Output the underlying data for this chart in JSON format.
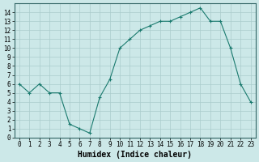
{
  "x": [
    0,
    1,
    2,
    3,
    4,
    5,
    6,
    7,
    8,
    9,
    10,
    11,
    12,
    13,
    14,
    15,
    16,
    17,
    18,
    19,
    20,
    21,
    22,
    23
  ],
  "y": [
    6,
    5,
    6,
    5,
    5,
    1.5,
    1,
    0.5,
    4.5,
    6.5,
    10,
    11,
    12,
    12.5,
    13,
    13,
    13.5,
    14,
    14.5,
    13,
    13,
    10,
    6,
    4
  ],
  "xlabel": "Humidex (Indice chaleur)",
  "line_color": "#1a7a6e",
  "marker": "+",
  "bg_color": "#cce8e8",
  "grid_color": "#aacccc",
  "xlim": [
    -0.5,
    23.5
  ],
  "ylim": [
    0,
    15
  ],
  "yticks": [
    0,
    1,
    2,
    3,
    4,
    5,
    6,
    7,
    8,
    9,
    10,
    11,
    12,
    13,
    14
  ],
  "xticks": [
    0,
    1,
    2,
    3,
    4,
    5,
    6,
    7,
    8,
    9,
    10,
    11,
    12,
    13,
    14,
    15,
    16,
    17,
    18,
    19,
    20,
    21,
    22,
    23
  ],
  "tick_fontsize": 5.5,
  "xlabel_fontsize": 7
}
